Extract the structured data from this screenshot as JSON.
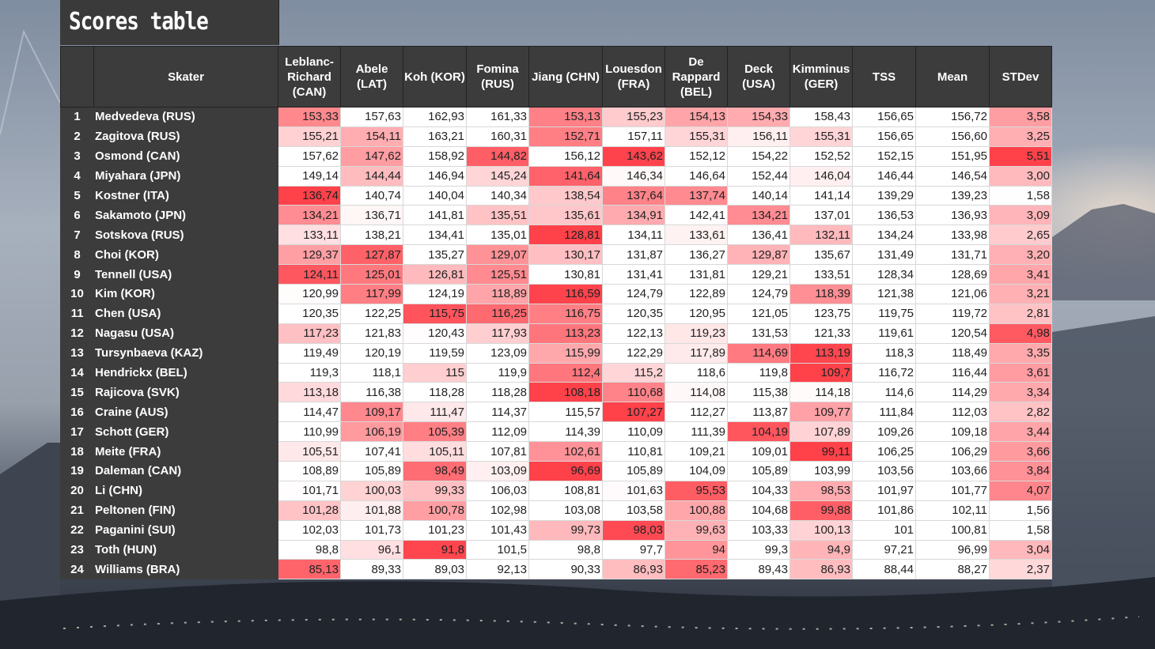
{
  "title": "Scores table",
  "colors": {
    "low": "#e8414a",
    "high": "#ffffff",
    "header": "#3c3c3c"
  },
  "columns": [
    "",
    "Skater",
    "Leblanc-Richard (CAN)",
    "Abele (LAT)",
    "Koh (KOR)",
    "Fomina (RUS)",
    "Jiang (CHN)",
    "Louesdon (FRA)",
    "De Rappard (BEL)",
    "Deck (USA)",
    "Kimminus (GER)",
    "TSS",
    "Mean",
    "STDev"
  ],
  "rows": [
    {
      "rank": "1",
      "skater": "Medvedeva (RUS)",
      "scores": [
        "153,33",
        "157,63",
        "162,93",
        "161,33",
        "153,13",
        "155,23",
        "154,13",
        "154,33",
        "158,43"
      ],
      "tss": "156,65",
      "mean": "156,72",
      "stdev": "3,58"
    },
    {
      "rank": "2",
      "skater": "Zagitova (RUS)",
      "scores": [
        "155,21",
        "154,11",
        "163,21",
        "160,31",
        "152,71",
        "157,11",
        "155,31",
        "156,11",
        "155,31"
      ],
      "tss": "156,65",
      "mean": "156,60",
      "stdev": "3,25"
    },
    {
      "rank": "3",
      "skater": "Osmond (CAN)",
      "scores": [
        "157,62",
        "147,62",
        "158,92",
        "144,82",
        "156,12",
        "143,62",
        "152,12",
        "154,22",
        "152,52"
      ],
      "tss": "152,15",
      "mean": "151,95",
      "stdev": "5,51"
    },
    {
      "rank": "4",
      "skater": "Miyahara (JPN)",
      "scores": [
        "149,14",
        "144,44",
        "146,94",
        "145,24",
        "141,64",
        "146,34",
        "146,64",
        "152,44",
        "146,04"
      ],
      "tss": "146,44",
      "mean": "146,54",
      "stdev": "3,00"
    },
    {
      "rank": "5",
      "skater": "Kostner (ITA)",
      "scores": [
        "136,74",
        "140,74",
        "140,04",
        "140,34",
        "138,54",
        "137,64",
        "137,74",
        "140,14",
        "141,14"
      ],
      "tss": "139,29",
      "mean": "139,23",
      "stdev": "1,58"
    },
    {
      "rank": "6",
      "skater": "Sakamoto (JPN)",
      "scores": [
        "134,21",
        "136,71",
        "141,81",
        "135,51",
        "135,61",
        "134,91",
        "142,41",
        "134,21",
        "137,01"
      ],
      "tss": "136,53",
      "mean": "136,93",
      "stdev": "3,09"
    },
    {
      "rank": "7",
      "skater": "Sotskova (RUS)",
      "scores": [
        "133,11",
        "138,21",
        "134,41",
        "135,01",
        "128,81",
        "134,11",
        "133,61",
        "136,41",
        "132,11"
      ],
      "tss": "134,24",
      "mean": "133,98",
      "stdev": "2,65"
    },
    {
      "rank": "8",
      "skater": "Choi (KOR)",
      "scores": [
        "129,37",
        "127,87",
        "135,27",
        "129,07",
        "130,17",
        "131,87",
        "136,27",
        "129,87",
        "135,67"
      ],
      "tss": "131,49",
      "mean": "131,71",
      "stdev": "3,20"
    },
    {
      "rank": "9",
      "skater": "Tennell (USA)",
      "scores": [
        "124,11",
        "125,01",
        "126,81",
        "125,51",
        "130,81",
        "131,41",
        "131,81",
        "129,21",
        "133,51"
      ],
      "tss": "128,34",
      "mean": "128,69",
      "stdev": "3,41"
    },
    {
      "rank": "10",
      "skater": "Kim (KOR)",
      "scores": [
        "120,99",
        "117,99",
        "124,19",
        "118,89",
        "116,59",
        "124,79",
        "122,89",
        "124,79",
        "118,39"
      ],
      "tss": "121,38",
      "mean": "121,06",
      "stdev": "3,21"
    },
    {
      "rank": "11",
      "skater": "Chen (USA)",
      "scores": [
        "120,35",
        "122,25",
        "115,75",
        "116,25",
        "116,75",
        "120,35",
        "120,95",
        "121,05",
        "123,75"
      ],
      "tss": "119,75",
      "mean": "119,72",
      "stdev": "2,81"
    },
    {
      "rank": "12",
      "skater": "Nagasu (USA)",
      "scores": [
        "117,23",
        "121,83",
        "120,43",
        "117,93",
        "113,23",
        "122,13",
        "119,23",
        "131,53",
        "121,33"
      ],
      "tss": "119,61",
      "mean": "120,54",
      "stdev": "4,98"
    },
    {
      "rank": "13",
      "skater": "Tursynbaeva (KAZ)",
      "scores": [
        "119,49",
        "120,19",
        "119,59",
        "123,09",
        "115,99",
        "122,29",
        "117,89",
        "114,69",
        "113,19"
      ],
      "tss": "118,3",
      "mean": "118,49",
      "stdev": "3,35"
    },
    {
      "rank": "14",
      "skater": "Hendrickx (BEL)",
      "scores": [
        "119,3",
        "118,1",
        "115",
        "119,9",
        "112,4",
        "115,2",
        "118,6",
        "119,8",
        "109,7"
      ],
      "tss": "116,72",
      "mean": "116,44",
      "stdev": "3,61"
    },
    {
      "rank": "15",
      "skater": "Rajicova (SVK)",
      "scores": [
        "113,18",
        "116,38",
        "118,28",
        "118,28",
        "108,18",
        "110,68",
        "114,08",
        "115,38",
        "114,18"
      ],
      "tss": "114,6",
      "mean": "114,29",
      "stdev": "3,34"
    },
    {
      "rank": "16",
      "skater": "Craine (AUS)",
      "scores": [
        "114,47",
        "109,17",
        "111,47",
        "114,37",
        "115,57",
        "107,27",
        "112,27",
        "113,87",
        "109,77"
      ],
      "tss": "111,84",
      "mean": "112,03",
      "stdev": "2,82"
    },
    {
      "rank": "17",
      "skater": "Schott (GER)",
      "scores": [
        "110,99",
        "106,19",
        "105,39",
        "112,09",
        "114,39",
        "110,09",
        "111,39",
        "104,19",
        "107,89"
      ],
      "tss": "109,26",
      "mean": "109,18",
      "stdev": "3,44"
    },
    {
      "rank": "18",
      "skater": "Meite (FRA)",
      "scores": [
        "105,51",
        "107,41",
        "105,11",
        "107,81",
        "102,61",
        "110,81",
        "109,21",
        "109,01",
        "99,11"
      ],
      "tss": "106,25",
      "mean": "106,29",
      "stdev": "3,66"
    },
    {
      "rank": "19",
      "skater": "Daleman (CAN)",
      "scores": [
        "108,89",
        "105,89",
        "98,49",
        "103,09",
        "96,69",
        "105,89",
        "104,09",
        "105,89",
        "103,99"
      ],
      "tss": "103,56",
      "mean": "103,66",
      "stdev": "3,84"
    },
    {
      "rank": "20",
      "skater": "Li (CHN)",
      "scores": [
        "101,71",
        "100,03",
        "99,33",
        "106,03",
        "108,81",
        "101,63",
        "95,53",
        "104,33",
        "98,53"
      ],
      "tss": "101,97",
      "mean": "101,77",
      "stdev": "4,07"
    },
    {
      "rank": "21",
      "skater": "Peltonen (FIN)",
      "scores": [
        "101,28",
        "101,88",
        "100,78",
        "102,98",
        "103,08",
        "103,58",
        "100,88",
        "104,68",
        "99,88"
      ],
      "tss": "101,86",
      "mean": "102,11",
      "stdev": "1,56"
    },
    {
      "rank": "22",
      "skater": "Paganini (SUI)",
      "scores": [
        "102,03",
        "101,73",
        "101,23",
        "101,43",
        "99,73",
        "98,03",
        "99,63",
        "103,33",
        "100,13"
      ],
      "tss": "101",
      "mean": "100,81",
      "stdev": "1,58"
    },
    {
      "rank": "23",
      "skater": "Toth (HUN)",
      "scores": [
        "98,8",
        "96,1",
        "91,8",
        "101,5",
        "98,8",
        "97,7",
        "94",
        "99,3",
        "94,9"
      ],
      "tss": "97,21",
      "mean": "96,99",
      "stdev": "3,04"
    },
    {
      "rank": "24",
      "skater": "Williams (BRA)",
      "scores": [
        "85,13",
        "89,33",
        "89,03",
        "92,13",
        "90,33",
        "86,93",
        "85,23",
        "89,43",
        "86,93"
      ],
      "tss": "88,44",
      "mean": "88,27",
      "stdev": "2,37"
    }
  ]
}
